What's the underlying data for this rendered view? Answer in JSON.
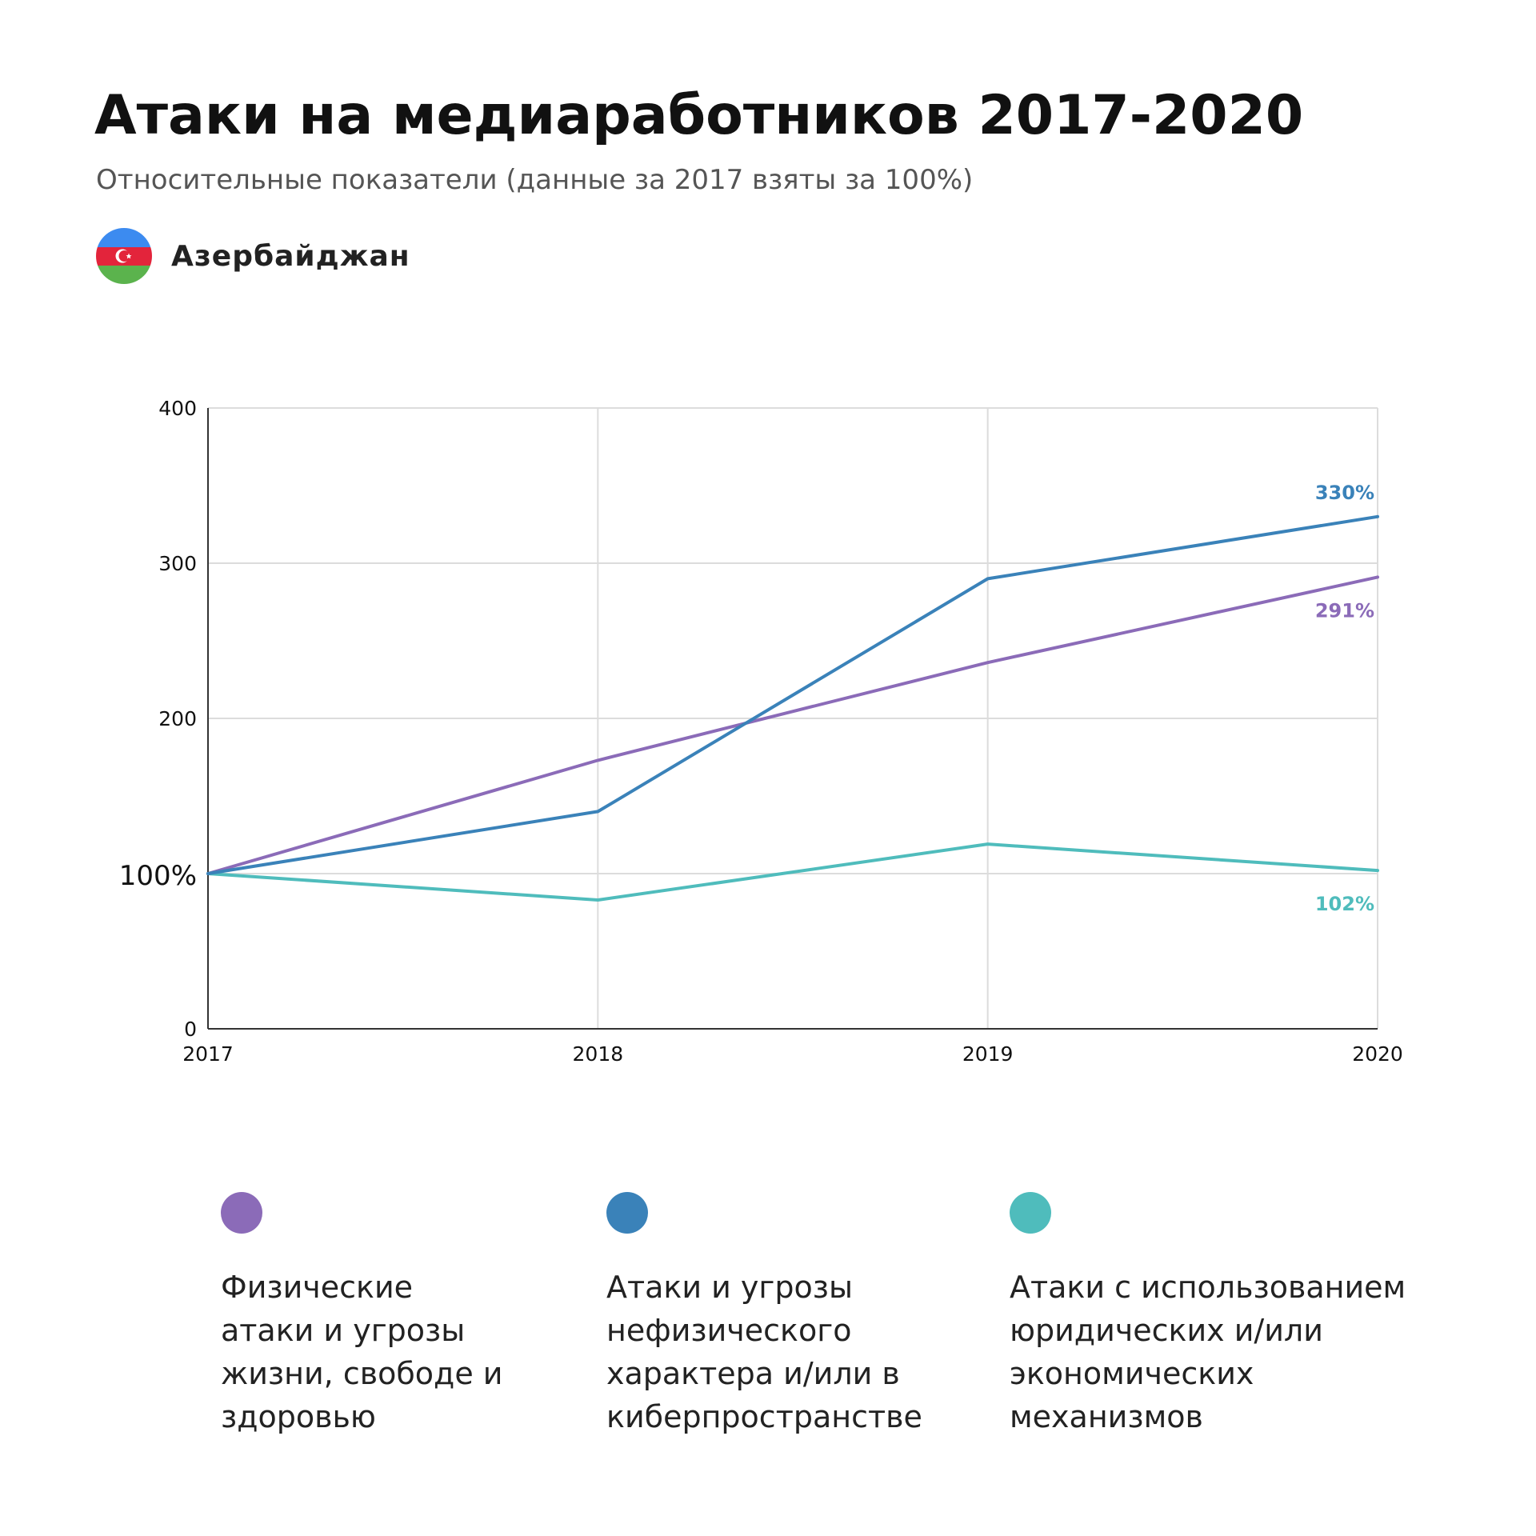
{
  "header": {
    "title": "Атаки на медиаработников 2017-2020",
    "subtitle": "Относительные показатели (данные за 2017 взяты за 100%)",
    "country": "Азербайджан",
    "flag_icon": "azerbaijan-flag-icon"
  },
  "chart_data": {
    "type": "line",
    "x": [
      "2017",
      "2018",
      "2019",
      "2020"
    ],
    "ylim": [
      0,
      400
    ],
    "yticks": [
      "0",
      "100%",
      "200",
      "300",
      "400"
    ],
    "grid": true,
    "series": [
      {
        "name": "Физические атаки и угрозы жизни, свободе и здоровью",
        "color": "#8b6bb8",
        "values": [
          100,
          173,
          236,
          291
        ],
        "end_label": "291%"
      },
      {
        "name": "Атаки и угрозы нефизического характера и/или в киберпространстве",
        "color": "#3a82b9",
        "values": [
          100,
          140,
          290,
          330
        ],
        "end_label": "330%"
      },
      {
        "name": "Атаки с использованием юридических и/или экономических механизмов",
        "color": "#4fbcbc",
        "values": [
          100,
          83,
          119,
          102
        ],
        "end_label": "102%"
      }
    ]
  },
  "legend": [
    {
      "label": "Физические атаки и угрозы жизни, свободе и здоровью",
      "lines": [
        "Физические",
        "атаки и угрозы",
        "жизни, свободе и",
        "здоровью"
      ],
      "color": "#8b6bb8"
    },
    {
      "label": "Атаки и угрозы нефизического характера и/или в киберпространстве",
      "lines": [
        "Атаки и угрозы",
        "нефизического",
        "характера и/или в",
        "киберпространстве"
      ],
      "color": "#3a82b9"
    },
    {
      "label": "Атаки с использованием юридических и/или экономических механизмов",
      "lines": [
        "Атаки с использованием",
        "юридических и/или",
        "экономических",
        "механизмов"
      ],
      "color": "#4fbcbc"
    }
  ]
}
